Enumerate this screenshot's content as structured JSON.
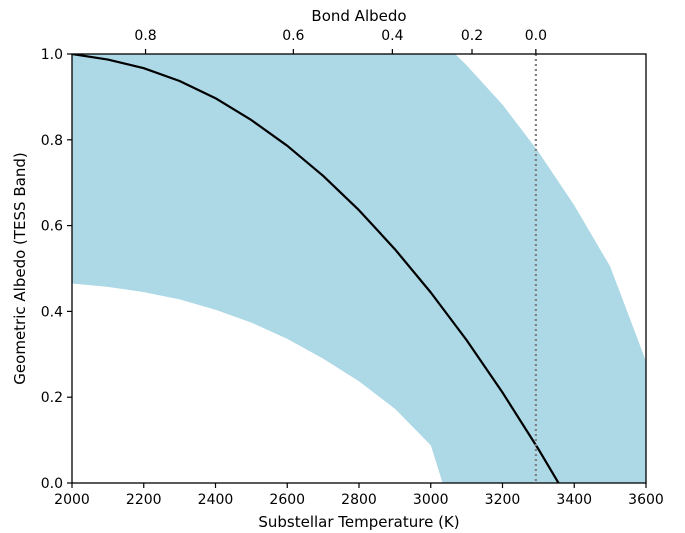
{
  "chart_data": {
    "type": "line",
    "title": "",
    "xlabel": "Substellar Temperature (K)",
    "ylabel": "Geometric Albedo (TESS Band)",
    "top_xlabel": "Bond Albedo",
    "xlim": [
      2000,
      3600
    ],
    "ylim": [
      0.0,
      1.0
    ],
    "x_ticks": [
      2000,
      2200,
      2400,
      2600,
      2800,
      3000,
      3200,
      3400,
      3600
    ],
    "y_ticks": [
      "0.0",
      "0.2",
      "0.4",
      "0.6",
      "0.8",
      "1.0"
    ],
    "top_ticks": [
      {
        "label": "0.8",
        "x": 2205
      },
      {
        "label": "0.6",
        "x": 2617
      },
      {
        "label": "0.4",
        "x": 2893
      },
      {
        "label": "0.2",
        "x": 3115
      },
      {
        "label": "0.0",
        "x": 3293
      }
    ],
    "grid": false,
    "legend": "none",
    "series": [
      {
        "role": "model-curve",
        "color": "#000000",
        "x": [
          2000,
          2100,
          2200,
          2300,
          2400,
          2500,
          2600,
          2700,
          2800,
          2900,
          3000,
          3100,
          3200,
          3300,
          3400,
          3462
        ],
        "y": [
          1.0,
          0.987,
          0.967,
          0.937,
          0.897,
          0.846,
          0.786,
          0.716,
          0.636,
          0.545,
          0.444,
          0.333,
          0.211,
          0.079,
          -0.062,
          -0.153
        ]
      }
    ],
    "band": {
      "color": "#add8e6",
      "upper": {
        "x": [
          3068,
          3100,
          3200,
          3300,
          3400,
          3500,
          3600
        ],
        "y": [
          1.0,
          0.974,
          0.882,
          0.772,
          0.647,
          0.505,
          0.284
        ]
      },
      "lower": {
        "x": [
          2000,
          2100,
          2200,
          2300,
          2400,
          2500,
          2600,
          2700,
          2800,
          2900,
          3000,
          3033
        ],
        "y": [
          0.465,
          0.457,
          0.445,
          0.428,
          0.404,
          0.374,
          0.336,
          0.29,
          0.237,
          0.173,
          0.088,
          0.0
        ]
      }
    },
    "reference_line": {
      "x": 3293,
      "style": "dotted",
      "color": "#808080"
    }
  }
}
